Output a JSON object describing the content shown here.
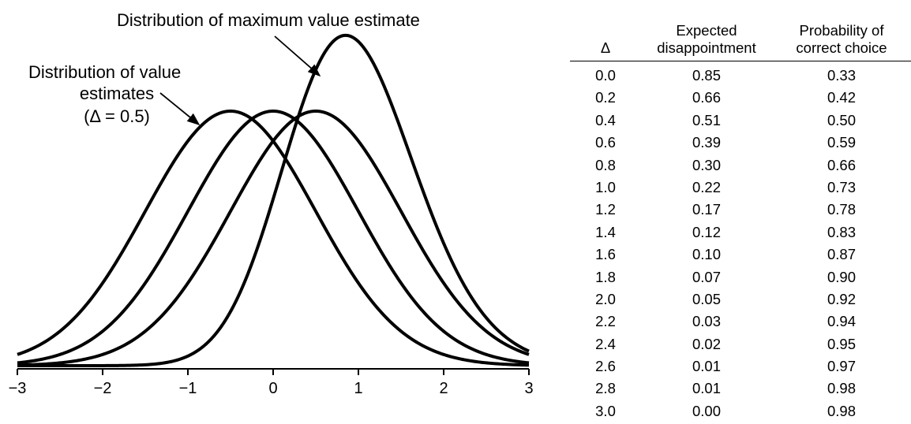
{
  "chart_data": {
    "type": "line",
    "x_range": [
      -3,
      3
    ],
    "x_ticks": [
      "−3",
      "−2",
      "−1",
      "0",
      "1",
      "2",
      "3"
    ],
    "series": [
      {
        "kind": "normal",
        "mean": -0.5,
        "sd": 1
      },
      {
        "kind": "normal",
        "mean": 0,
        "sd": 1
      },
      {
        "kind": "normal",
        "mean": 0.5,
        "sd": 1
      },
      {
        "kind": "max_of_normals",
        "means": [
          -0.5,
          0,
          0.5
        ],
        "sd": 1
      }
    ],
    "annotations": {
      "max_label": "Distribution of maximum value estimate",
      "value_label_line1": "Distribution of value",
      "value_label_line2": "estimates",
      "value_label_line3": "(Δ = 0.5)"
    }
  },
  "table": {
    "headers": {
      "delta": "Δ",
      "disappointment_line1": "Expected",
      "disappointment_line2": "disappointment",
      "probability_line1": "Probability of",
      "probability_line2": "correct choice"
    },
    "rows": [
      [
        "0.0",
        "0.85",
        "0.33"
      ],
      [
        "0.2",
        "0.66",
        "0.42"
      ],
      [
        "0.4",
        "0.51",
        "0.50"
      ],
      [
        "0.6",
        "0.39",
        "0.59"
      ],
      [
        "0.8",
        "0.30",
        "0.66"
      ],
      [
        "1.0",
        "0.22",
        "0.73"
      ],
      [
        "1.2",
        "0.17",
        "0.78"
      ],
      [
        "1.4",
        "0.12",
        "0.83"
      ],
      [
        "1.6",
        "0.10",
        "0.87"
      ],
      [
        "1.8",
        "0.07",
        "0.90"
      ],
      [
        "2.0",
        "0.05",
        "0.92"
      ],
      [
        "2.2",
        "0.03",
        "0.94"
      ],
      [
        "2.4",
        "0.02",
        "0.95"
      ],
      [
        "2.6",
        "0.01",
        "0.97"
      ],
      [
        "2.8",
        "0.01",
        "0.98"
      ],
      [
        "3.0",
        "0.00",
        "0.98"
      ]
    ]
  }
}
